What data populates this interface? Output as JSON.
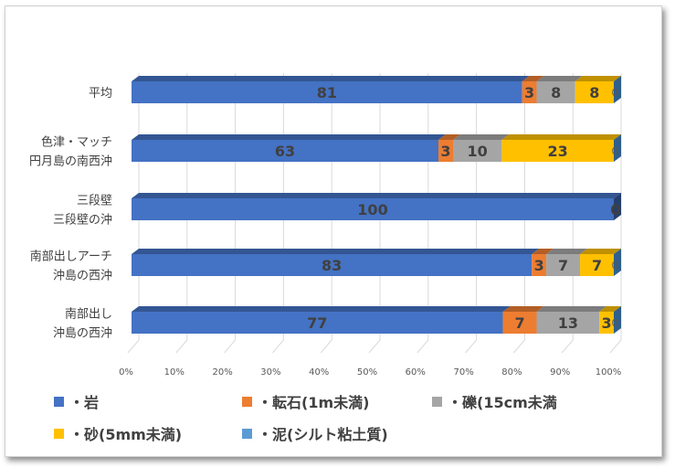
{
  "chart_data": {
    "type": "bar",
    "orientation": "horizontal",
    "stacked": "percent",
    "categories": [
      "平均",
      "色津・マッチ\n円月島の南西沖",
      "三段壁\n三段壁の沖",
      "南部出しアーチ\n沖島の西沖",
      "南部出し\n沖島の西沖"
    ],
    "series": [
      {
        "name": "・岩",
        "color": "#4472C4",
        "values": [
          81,
          63,
          100,
          83,
          77
        ]
      },
      {
        "name": "・転石(1m未満)",
        "color": "#ED7D31",
        "values": [
          3,
          3,
          0,
          3,
          7
        ]
      },
      {
        "name": "・礫(15cm未満",
        "color": "#A5A5A5",
        "values": [
          8,
          10,
          0,
          7,
          13
        ]
      },
      {
        "name": "・砂(5mm未満)",
        "color": "#FFC000",
        "values": [
          8,
          23,
          0,
          7,
          3
        ]
      },
      {
        "name": "・泥(シルト粘土質)",
        "color": "#5B9BD5",
        "values": [
          0,
          0,
          0,
          0,
          0
        ]
      }
    ],
    "xticks": [
      "0%",
      "10%",
      "20%",
      "30%",
      "40%",
      "50%",
      "60%",
      "70%",
      "80%",
      "90%",
      "100%"
    ],
    "xlim": [
      0,
      100
    ],
    "grid": true,
    "legend": "bottom",
    "title": "",
    "xlabel": "",
    "ylabel": ""
  }
}
